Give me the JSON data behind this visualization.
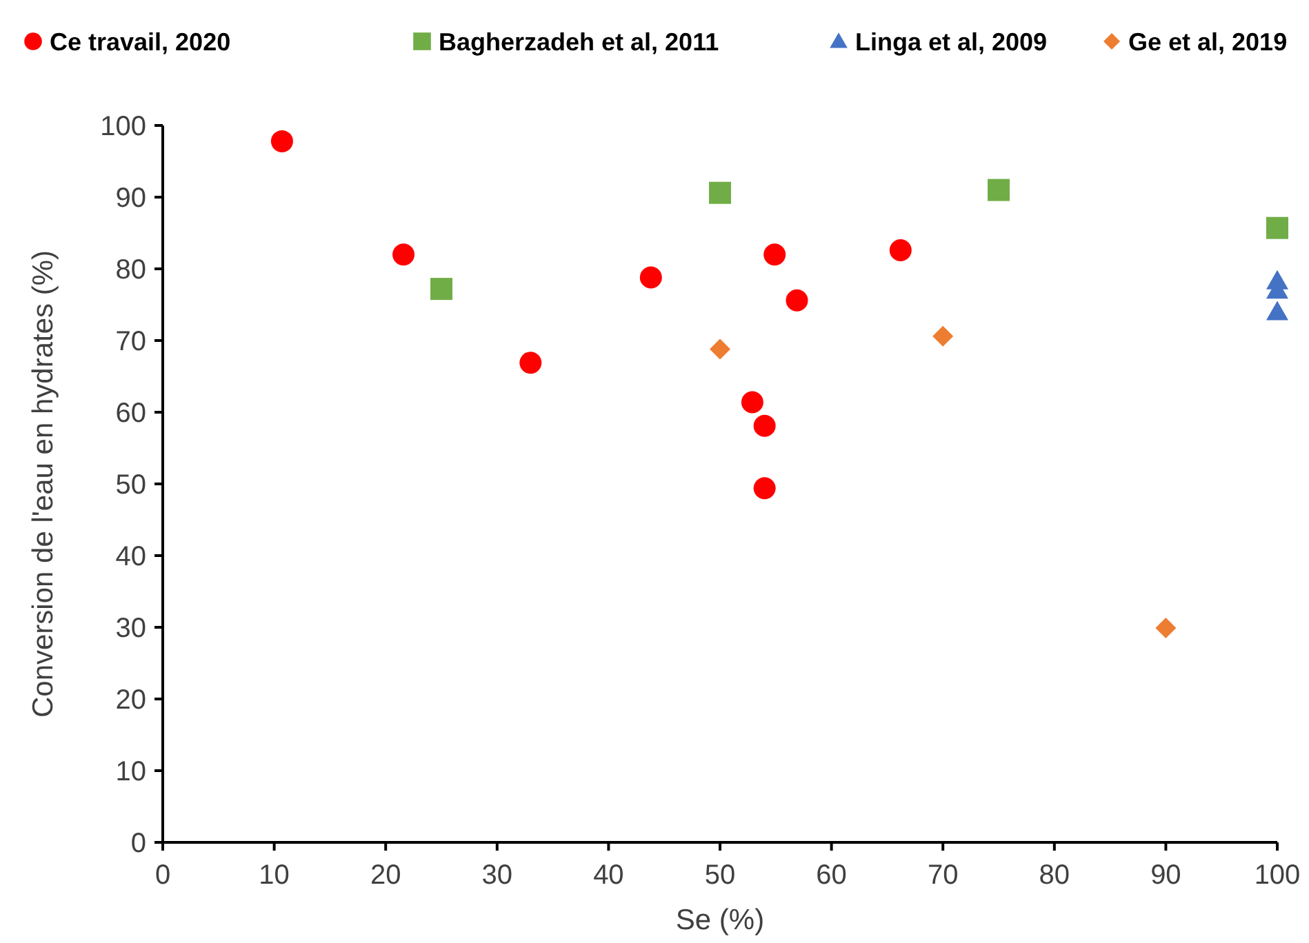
{
  "chart_data": {
    "type": "scatter",
    "xlabel": "Se (%)",
    "ylabel": "Conversion de l'eau en hydrates (%)",
    "xlim": [
      0,
      100
    ],
    "ylim": [
      0,
      100
    ],
    "xticks": [
      0,
      10,
      20,
      30,
      40,
      50,
      60,
      70,
      80,
      90,
      100
    ],
    "yticks": [
      0,
      10,
      20,
      30,
      40,
      50,
      60,
      70,
      80,
      90,
      100
    ],
    "grid": false,
    "legend": "top",
    "series": [
      {
        "name": "Ce travail, 2020",
        "color": "#ff0000",
        "marker": "circle",
        "x": [
          10.7,
          21.6,
          33,
          43.8,
          52.9,
          54,
          54,
          54.9,
          56.9,
          66.2
        ],
        "values": [
          97.8,
          82,
          66.9,
          78.8,
          61.4,
          58.1,
          49.4,
          82,
          75.6,
          82.6
        ]
      },
      {
        "name": "Bagherzadeh et al, 2011",
        "color": "#70ad47",
        "marker": "square",
        "x": [
          25,
          50,
          75,
          100
        ],
        "values": [
          77.2,
          90.6,
          91,
          85.7
        ]
      },
      {
        "name": "Linga et al, 2009",
        "color": "#4472c4",
        "marker": "triangle",
        "x": [
          100,
          100,
          100
        ],
        "values": [
          78.3,
          77,
          74
        ]
      },
      {
        "name": "Ge et al, 2019",
        "color": "#ed7d31",
        "marker": "diamond",
        "x": [
          50,
          70,
          90
        ],
        "values": [
          68.8,
          70.6,
          29.9
        ]
      }
    ]
  }
}
